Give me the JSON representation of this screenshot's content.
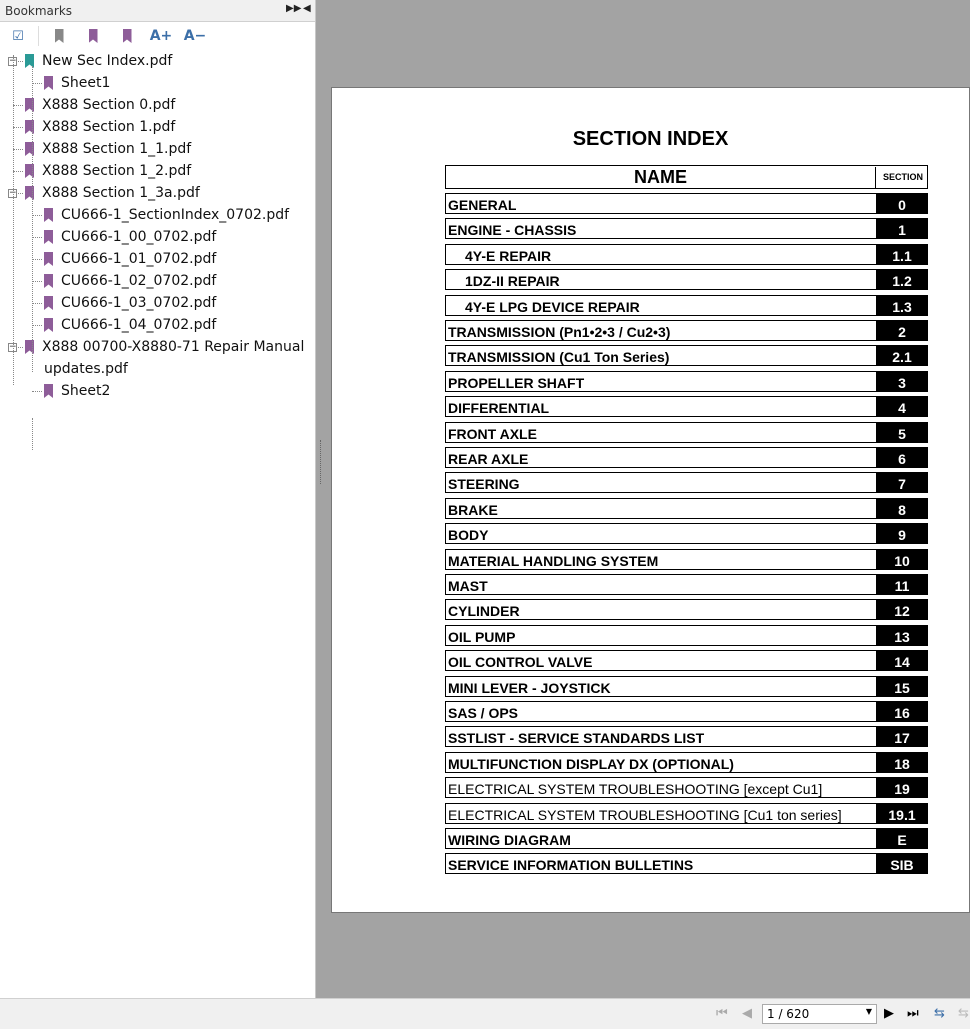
{
  "panel": {
    "title": "Bookmarks",
    "toolbar": [
      "expand-all",
      "delete-bookmark",
      "add-bookmark",
      "goto-bookmark",
      "increase-font",
      "decrease-font"
    ],
    "font_up": "A+",
    "font_down": "A−"
  },
  "bookmarks": [
    {
      "label": "New Sec Index.pdf",
      "level": 0,
      "expanded": true,
      "color": "teal"
    },
    {
      "label": "Sheet1",
      "level": 1
    },
    {
      "label": "X888 Section 0.pdf",
      "level": 0
    },
    {
      "label": "X888 Section 1.pdf",
      "level": 0
    },
    {
      "label": "X888 Section 1_1.pdf",
      "level": 0
    },
    {
      "label": "X888 Section 1_2.pdf",
      "level": 0
    },
    {
      "label": "X888 Section 1_3a.pdf",
      "level": 0,
      "expanded": true
    },
    {
      "label": "CU666-1_SectionIndex_0702.pdf",
      "level": 1
    },
    {
      "label": "CU666-1_00_0702.pdf",
      "level": 1
    },
    {
      "label": "CU666-1_01_0702.pdf",
      "level": 1
    },
    {
      "label": "CU666-1_02_0702.pdf",
      "level": 1
    },
    {
      "label": "CU666-1_03_0702.pdf",
      "level": 1
    },
    {
      "label": "CU666-1_04_0702.pdf",
      "level": 1
    },
    {
      "label": "X888 00700-X8880-71 Repair Manual",
      "level": 0,
      "expanded": true
    },
    {
      "label": "updates.pdf",
      "level": 0,
      "continuation": true
    },
    {
      "label": "Sheet2",
      "level": 1
    }
  ],
  "document": {
    "title": "SECTION INDEX",
    "header": {
      "name": "NAME",
      "section": "SECTION"
    },
    "rows": [
      {
        "name": "GENERAL",
        "section": "0"
      },
      {
        "name": "ENGINE - CHASSIS",
        "section": "1"
      },
      {
        "name": "4Y-E REPAIR",
        "section": "1.1",
        "indent": true
      },
      {
        "name": "1DZ-II REPAIR",
        "section": "1.2",
        "indent": true
      },
      {
        "name": "4Y-E LPG DEVICE REPAIR",
        "section": "1.3",
        "indent": true
      },
      {
        "name": "TRANSMISSION (Pn1•2•3 / Cu2•3)",
        "section": "2"
      },
      {
        "name": "TRANSMISSION (Cu1 Ton Series)",
        "section": "2.1"
      },
      {
        "name": "PROPELLER SHAFT",
        "section": "3"
      },
      {
        "name": "DIFFERENTIAL",
        "section": "4"
      },
      {
        "name": "FRONT AXLE",
        "section": "5"
      },
      {
        "name": "REAR AXLE",
        "section": "6"
      },
      {
        "name": "STEERING",
        "section": "7"
      },
      {
        "name": "BRAKE",
        "section": "8"
      },
      {
        "name": "BODY",
        "section": "9"
      },
      {
        "name": "MATERIAL HANDLING SYSTEM",
        "section": "10"
      },
      {
        "name": "MAST",
        "section": "11"
      },
      {
        "name": "CYLINDER",
        "section": "12"
      },
      {
        "name": "OIL PUMP",
        "section": "13"
      },
      {
        "name": "OIL CONTROL VALVE",
        "section": "14"
      },
      {
        "name": "MINI LEVER - JOYSTICK",
        "section": "15"
      },
      {
        "name": "SAS / OPS",
        "section": "16"
      },
      {
        "name": "SSTLIST - SERVICE STANDARDS LIST",
        "section": "17"
      },
      {
        "name": "MULTIFUNCTION DISPLAY DX (OPTIONAL)",
        "section": "18"
      },
      {
        "name": "ELECTRICAL SYSTEM TROUBLESHOOTING [except Cu1]",
        "section": "19",
        "normal": true
      },
      {
        "name": "ELECTRICAL SYSTEM TROUBLESHOOTING [Cu1 ton series]",
        "section": "19.1",
        "normal": true
      },
      {
        "name": "WIRING DIAGRAM",
        "section": "E"
      },
      {
        "name": "SERVICE INFORMATION BULLETINS",
        "section": "SIB"
      }
    ]
  },
  "navigation": {
    "page_display": "1 / 620",
    "current_page": 1,
    "total_pages": 620
  }
}
